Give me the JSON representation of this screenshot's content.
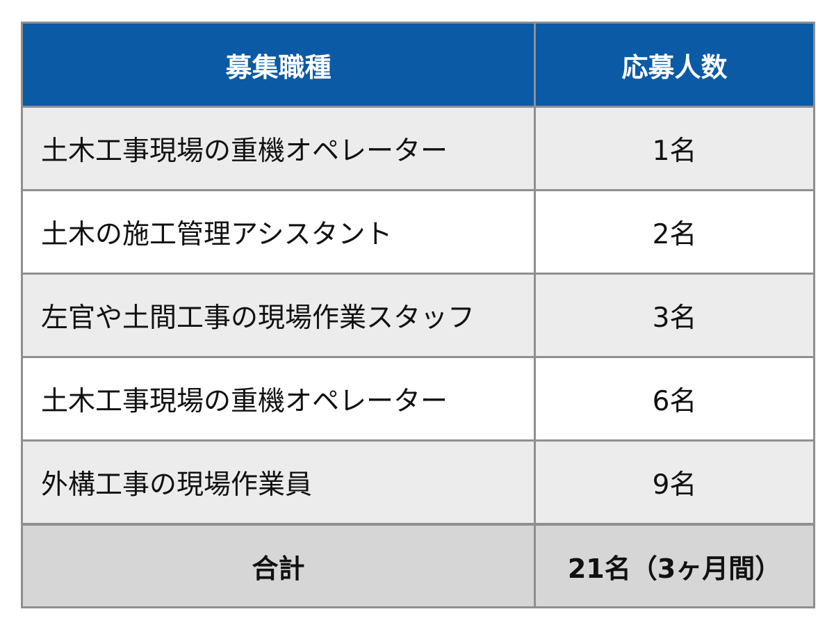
{
  "table": {
    "headers": {
      "job": "募集職種",
      "count": "応募人数"
    },
    "rows": [
      {
        "job": "土木工事現場の重機オペレーター",
        "count": "1名"
      },
      {
        "job": "土木の施工管理アシスタント",
        "count": "2名"
      },
      {
        "job": "左官や土間工事の現場作業スタッフ",
        "count": "3名"
      },
      {
        "job": "土木工事現場の重機オペレーター",
        "count": "6名"
      },
      {
        "job": "外構工事の現場作業員",
        "count": "9名"
      }
    ],
    "total": {
      "label": "合計",
      "value": "21名（3ヶ月間）"
    }
  },
  "colors": {
    "header_bg": "#0a5aa6",
    "header_text": "#ffffff",
    "row_shaded": "#ececec",
    "row_plain": "#ffffff",
    "total_bg": "#d6d6d6",
    "border": "#8f8f8f"
  }
}
